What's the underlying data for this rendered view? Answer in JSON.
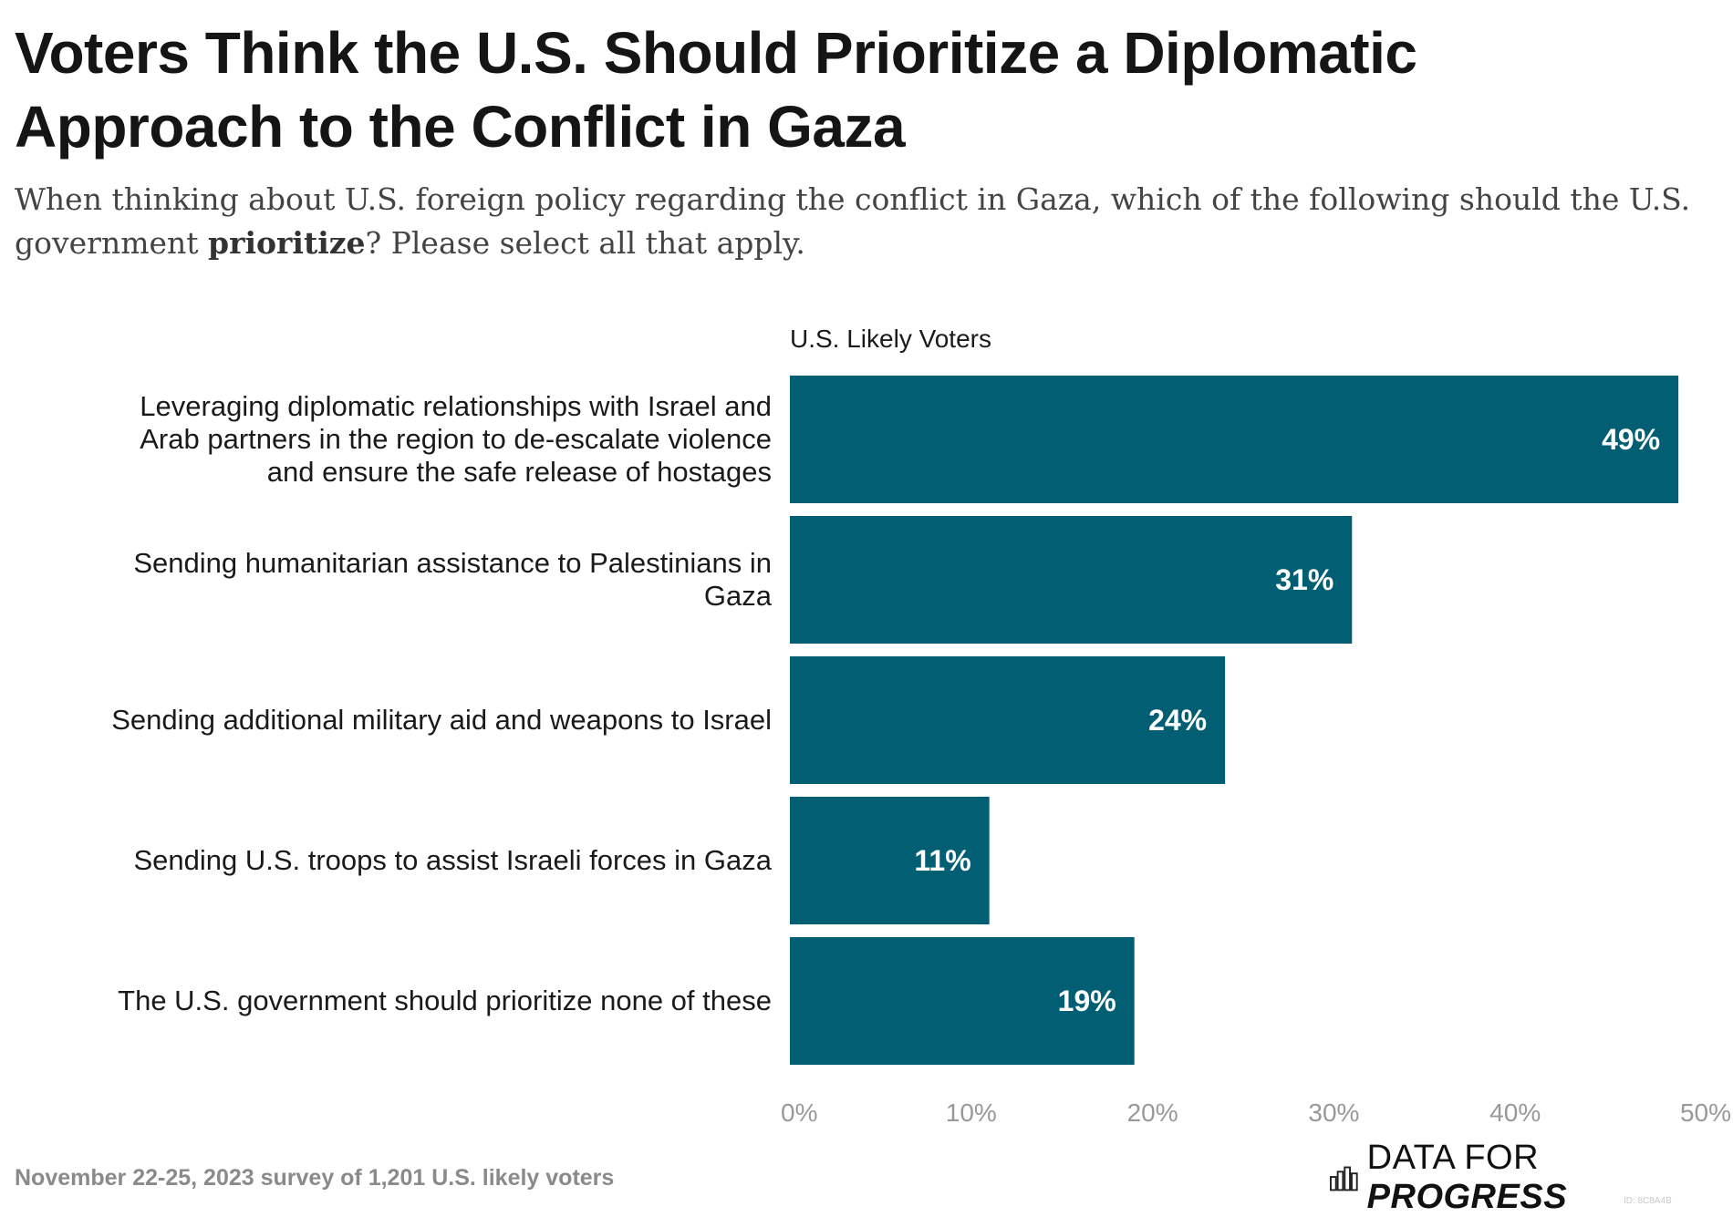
{
  "title": "Voters Think the U.S. Should Prioritize a Diplomatic Approach to the Conflict in Gaza",
  "subtitle": {
    "before": "When thinking about U.S. foreign policy regarding the conflict in Gaza, which of the following should the U.S. government ",
    "emphasis": "prioritize",
    "after": "? Please select all that apply."
  },
  "footer": {
    "note": "November 22-25, 2023 survey of 1,201 U.S. likely voters",
    "brand_light": "DATA FOR ",
    "brand_bold": "PROGRESS",
    "watermark": "ID: 8C8A4B"
  },
  "colors": {
    "bar": "#025e73",
    "label_text": "#ffffff",
    "axis_text": "#999999",
    "text": "#1a1a1a"
  },
  "chart_data": {
    "type": "bar",
    "orientation": "horizontal",
    "series_label": "U.S. Likely Voters",
    "categories": [
      [
        "Leveraging diplomatic relationships with Israel and",
        "Arab partners in the region to de-escalate violence",
        "and ensure the safe release of hostages"
      ],
      [
        "Sending humanitarian assistance to Palestinians in",
        "Gaza"
      ],
      [
        "Sending additional military aid and weapons to Israel"
      ],
      [
        "Sending U.S. troops to assist Israeli forces in Gaza"
      ],
      [
        "The U.S. government should prioritize none of these"
      ]
    ],
    "values": [
      49,
      31,
      24,
      11,
      19
    ],
    "value_labels": [
      "49%",
      "31%",
      "24%",
      "11%",
      "19%"
    ],
    "xlim": [
      0,
      50
    ],
    "xticks": [
      0,
      10,
      20,
      30,
      40,
      50
    ],
    "xtick_labels": [
      "0%",
      "10%",
      "20%",
      "30%",
      "40%",
      "50%"
    ],
    "grid": false
  }
}
